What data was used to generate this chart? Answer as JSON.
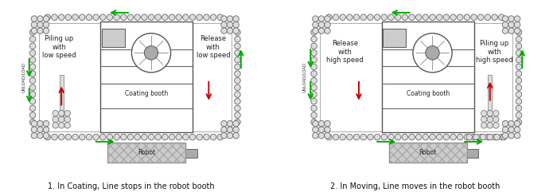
{
  "chain_color": "#666666",
  "chain_fill": "#dddddd",
  "arrow_green": "#00aa00",
  "arrow_red": "#cc0000",
  "text_color": "#111111",
  "caption1": "1. In Coating, Line stops in the robot booth",
  "caption2": "2. In Moving, Line moves in the robot booth",
  "label_piling_low": "Piling up\nwith\nlow speed",
  "label_release_low": "Release\nwith\nlow speed",
  "label_piling_high": "Piling up\nwith\nhigh speed",
  "label_release_high": "Release\nwith\nhigh speed",
  "label_coating": "Coating booth",
  "label_robot": "Robot",
  "label_unload": "UNLOAD/LOAD"
}
